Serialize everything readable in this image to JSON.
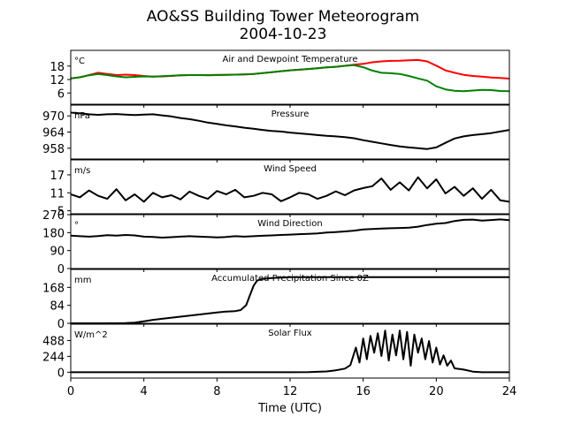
{
  "figure": {
    "title_line1": "AO&SS Building Tower Meteorogram",
    "title_line2": "2004-10-23",
    "xlabel": "Time (UTC)",
    "xticks": [
      0,
      4,
      8,
      12,
      16,
      20,
      24
    ],
    "xlim": [
      0,
      24
    ]
  },
  "chart_data": [
    {
      "type": "line",
      "title": "Air and Dewpoint Temperature",
      "unit": "°C",
      "yticks": [
        6,
        12,
        18
      ],
      "ylim": [
        1,
        25
      ],
      "x": [
        0,
        0.5,
        1,
        1.5,
        2,
        2.5,
        3,
        3.5,
        4,
        4.5,
        5,
        5.5,
        6,
        6.5,
        7,
        7.5,
        8,
        8.5,
        9,
        9.5,
        10,
        10.5,
        11,
        11.5,
        12,
        12.5,
        13,
        13.5,
        14,
        14.5,
        15,
        15.5,
        16,
        16.5,
        17,
        17.5,
        18,
        18.5,
        19,
        19.5,
        20,
        20.5,
        21,
        21.5,
        22,
        22.5,
        23,
        23.5,
        24
      ],
      "series": [
        {
          "color": "#ff0000",
          "values": [
            12.5,
            13,
            14,
            15,
            14.5,
            14,
            14.2,
            14,
            13.6,
            13.3,
            13.4,
            13.6,
            13.9,
            14,
            14,
            14,
            14.1,
            14.1,
            14.2,
            14.3,
            14.5,
            14.9,
            15.3,
            15.7,
            16.1,
            16.4,
            16.7,
            17,
            17.4,
            17.7,
            18.1,
            18.6,
            19,
            19.7,
            20.1,
            20.3,
            20.4,
            20.6,
            20.7,
            20.1,
            18.2,
            16.1,
            15,
            14.1,
            13.6,
            13.3,
            12.9,
            12.7,
            12.4
          ]
        },
        {
          "color": "#008000",
          "values": [
            12.5,
            13,
            13.9,
            14.5,
            14,
            13.4,
            13,
            13.2,
            13.4,
            13.3,
            13.5,
            13.7,
            13.9,
            14,
            14,
            13.9,
            14,
            14.1,
            14.2,
            14.3,
            14.5,
            14.9,
            15.3,
            15.7,
            16.1,
            16.4,
            16.7,
            17,
            17.4,
            17.7,
            18.1,
            18.4,
            17.5,
            16,
            15,
            14.8,
            14.5,
            13.6,
            12.5,
            11.5,
            9,
            7.6,
            7,
            6.8,
            7.1,
            7.4,
            7.3,
            6.9,
            6.8
          ]
        }
      ]
    },
    {
      "type": "line",
      "title": "Pressure",
      "unit": "hPa",
      "yticks": [
        958,
        964,
        970
      ],
      "ylim": [
        954,
        974
      ],
      "x": [
        0,
        0.5,
        1,
        1.5,
        2,
        2.5,
        3,
        3.5,
        4,
        4.5,
        5,
        5.5,
        6,
        6.5,
        7,
        7.5,
        8,
        8.5,
        9,
        9.5,
        10,
        10.5,
        11,
        11.5,
        12,
        12.5,
        13,
        13.5,
        14,
        14.5,
        15,
        15.5,
        16,
        16.5,
        17,
        17.5,
        18,
        18.5,
        19,
        19.5,
        20,
        20.5,
        21,
        21.5,
        22,
        22.5,
        23,
        23.5,
        24
      ],
      "series": [
        {
          "color": "#000000",
          "values": [
            971.2,
            971,
            970.6,
            970.4,
            970.6,
            970.7,
            970.5,
            970.3,
            970.5,
            970.6,
            970.2,
            969.8,
            969.2,
            968.8,
            968.2,
            967.5,
            967,
            966.5,
            966.1,
            965.6,
            965.2,
            964.8,
            964.4,
            964.2,
            963.8,
            963.5,
            963.2,
            962.9,
            962.6,
            962.4,
            962.1,
            961.7,
            961,
            960.4,
            959.8,
            959.2,
            958.7,
            958.3,
            958,
            957.7,
            958.3,
            960,
            961.6,
            962.4,
            962.9,
            963.2,
            963.6,
            964.2,
            964.8
          ]
        }
      ]
    },
    {
      "type": "line",
      "title": "Wind Speed",
      "unit": "m/s",
      "yticks": [
        5,
        11,
        17
      ],
      "ylim": [
        4,
        22
      ],
      "x": [
        0,
        0.5,
        1,
        1.5,
        2,
        2.5,
        3,
        3.5,
        4,
        4.5,
        5,
        5.5,
        6,
        6.5,
        7,
        7.5,
        8,
        8.5,
        9,
        9.5,
        10,
        10.5,
        11,
        11.5,
        12,
        12.5,
        13,
        13.5,
        14,
        14.5,
        15,
        15.5,
        16,
        16.5,
        17,
        17.5,
        18,
        18.5,
        19,
        19.5,
        20,
        20.5,
        21,
        21.5,
        22,
        22.5,
        23,
        23.5,
        24
      ],
      "series": [
        {
          "color": "#000000",
          "values": [
            10.5,
            9.5,
            11.8,
            10,
            9,
            12.2,
            8.5,
            10.5,
            8,
            11,
            9.5,
            10.2,
            8.8,
            11.4,
            10,
            9,
            11.6,
            10.5,
            12,
            9.5,
            10,
            11,
            10.5,
            8.2,
            9.5,
            11,
            10.5,
            9,
            10,
            11.5,
            10.2,
            11.8,
            12.6,
            13.2,
            15.8,
            12,
            14.5,
            11.8,
            16.2,
            12.5,
            15.5,
            10.8,
            13,
            10,
            12.5,
            9,
            12,
            8.5,
            8
          ]
        }
      ]
    },
    {
      "type": "line",
      "title": "Wind Direction",
      "unit": "°",
      "yticks": [
        0,
        90,
        180,
        270
      ],
      "ylim": [
        0,
        270
      ],
      "x": [
        0,
        0.5,
        1,
        1.5,
        2,
        2.5,
        3,
        3.5,
        4,
        4.5,
        5,
        5.5,
        6,
        6.5,
        7,
        7.5,
        8,
        8.5,
        9,
        9.5,
        10,
        10.5,
        11,
        11.5,
        12,
        12.5,
        13,
        13.5,
        14,
        14.5,
        15,
        15.5,
        16,
        16.5,
        17,
        17.5,
        18,
        18.5,
        19,
        19.5,
        20,
        20.5,
        21,
        21.5,
        22,
        22.5,
        23,
        23.5,
        24
      ],
      "series": [
        {
          "color": "#000000",
          "values": [
            165,
            162,
            160,
            163,
            167,
            165,
            168,
            166,
            160,
            158,
            155,
            157,
            160,
            162,
            160,
            158,
            156,
            158,
            162,
            160,
            162,
            164,
            166,
            168,
            170,
            172,
            174,
            176,
            180,
            183,
            186,
            190,
            196,
            198,
            200,
            202,
            203,
            205,
            210,
            218,
            225,
            228,
            238,
            244,
            245,
            240,
            243,
            246,
            242
          ]
        }
      ]
    },
    {
      "type": "line",
      "title": "Accumulated Precipitation Since 0Z",
      "unit": "mm",
      "yticks": [
        0,
        84,
        168
      ],
      "ylim": [
        0,
        252
      ],
      "x": [
        0,
        1,
        2,
        3,
        3.5,
        4,
        4.5,
        5,
        6,
        7,
        8,
        8.5,
        9,
        9.3,
        9.6,
        9.8,
        10,
        10.2,
        10.5,
        11,
        11.5,
        12,
        14,
        16,
        18,
        20,
        22,
        24
      ],
      "series": [
        {
          "color": "#000000",
          "values": [
            0,
            0,
            0,
            1,
            3,
            9,
            16,
            21,
            31,
            41,
            51,
            55,
            57,
            62,
            85,
            130,
            175,
            200,
            208,
            212,
            214,
            216,
            216,
            216,
            216,
            216,
            216,
            216
          ]
        }
      ]
    },
    {
      "type": "line",
      "title": "Solar Flux",
      "unit": "W/m^2",
      "yticks": [
        0,
        244,
        488
      ],
      "ylim": [
        -90,
        740
      ],
      "x": [
        0,
        2,
        4,
        6,
        8,
        10,
        12,
        13,
        14,
        14.5,
        15,
        15.3,
        15.6,
        15.8,
        16,
        16.2,
        16.4,
        16.6,
        16.8,
        17,
        17.2,
        17.4,
        17.6,
        17.8,
        18,
        18.2,
        18.4,
        18.6,
        18.8,
        19,
        19.2,
        19.4,
        19.6,
        19.8,
        20,
        20.2,
        20.4,
        20.6,
        20.8,
        21,
        21.5,
        22,
        22.5,
        23,
        24
      ],
      "series": [
        {
          "color": "#000000",
          "values": [
            0,
            0,
            0,
            0,
            0,
            0,
            0,
            2,
            12,
            30,
            55,
            110,
            380,
            150,
            520,
            200,
            560,
            300,
            600,
            250,
            640,
            180,
            580,
            260,
            640,
            200,
            620,
            100,
            580,
            300,
            520,
            200,
            480,
            150,
            380,
            120,
            260,
            100,
            180,
            60,
            40,
            10,
            0,
            0,
            0
          ]
        }
      ]
    }
  ]
}
